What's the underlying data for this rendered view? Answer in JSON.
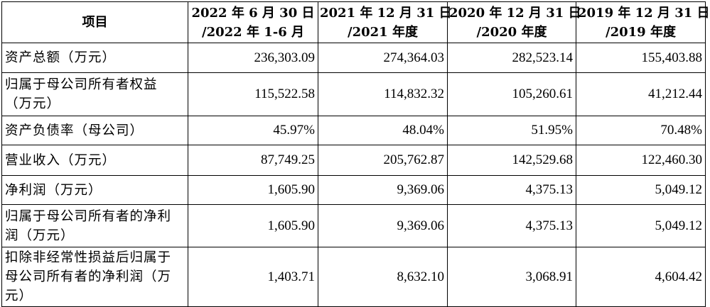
{
  "table": {
    "header": {
      "item": "项目",
      "columns": [
        {
          "line1": "2022 年 6 月 30 日",
          "line2": "/2022 年 1-6 月"
        },
        {
          "line1": "2021 年 12 月 31 日",
          "line2": "/2021 年度"
        },
        {
          "line1": "2020 年 12 月 31 日",
          "line2": "/2020 年度"
        },
        {
          "line1": "2019 年 12 月 31 日",
          "line2": "/2019 年度"
        }
      ]
    },
    "rows": [
      {
        "label": "资产总额（万元）",
        "values": [
          "236,303.09",
          "274,364.03",
          "282,523.14",
          "155,403.88"
        ]
      },
      {
        "label": "归属于母公司所有者权益（万元）",
        "values": [
          "115,522.58",
          "114,832.32",
          "105,260.61",
          "41,212.44"
        ]
      },
      {
        "label": "资产负债率（母公司）",
        "values": [
          "45.97%",
          "48.04%",
          "51.95%",
          "70.48%"
        ]
      },
      {
        "label": "营业收入（万元）",
        "values": [
          "87,749.25",
          "205,762.87",
          "142,529.68",
          "122,460.30"
        ]
      },
      {
        "label": "净利润（万元）",
        "values": [
          "1,605.90",
          "9,369.06",
          "4,375.13",
          "5,049.12"
        ]
      },
      {
        "label": "归属于母公司所有者的净利润（万元）",
        "values": [
          "1,605.90",
          "9,369.06",
          "4,375.13",
          "5,049.12"
        ]
      },
      {
        "label": "扣除非经常性损益后归属于母公司所有者的净利润（万元）",
        "values": [
          "1,403.71",
          "8,632.10",
          "3,068.91",
          "4,604.42"
        ]
      }
    ]
  }
}
